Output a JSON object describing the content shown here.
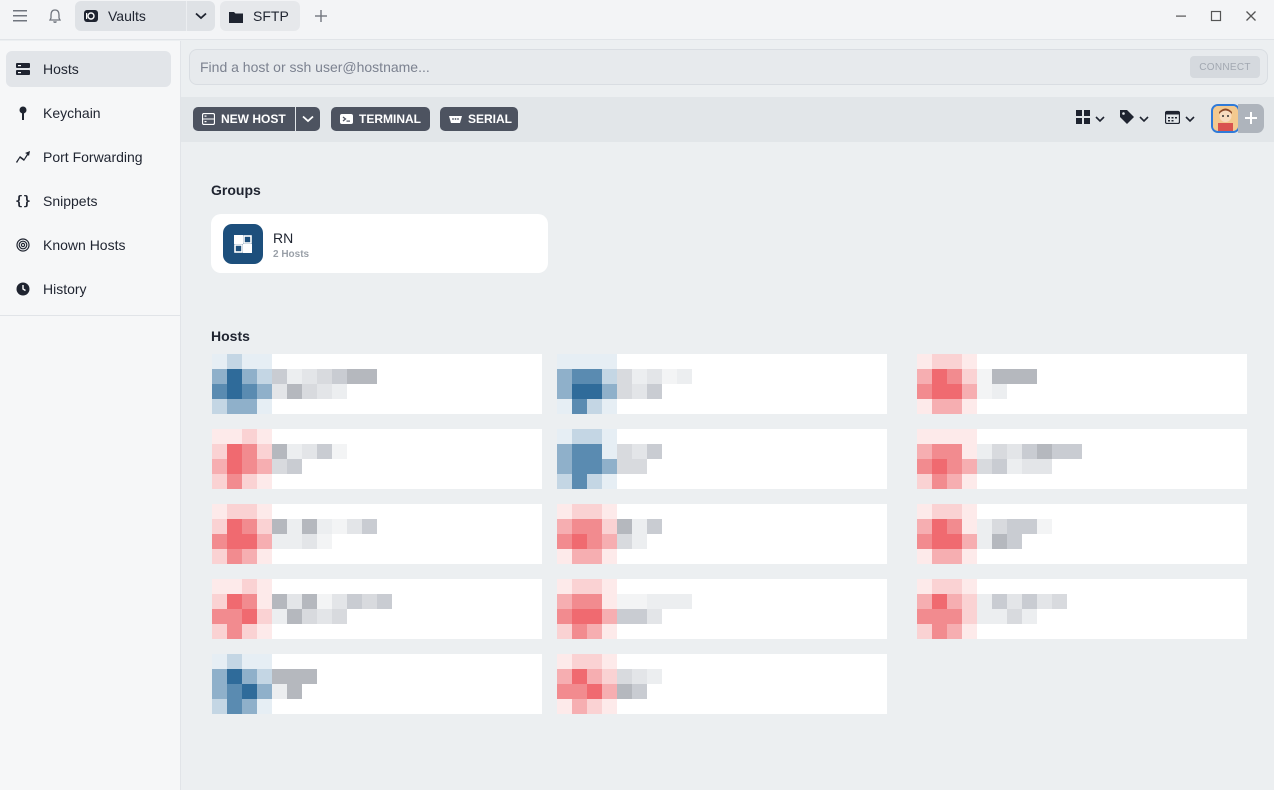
{
  "titlebar": {
    "vaults_label": "Vaults",
    "sftp_label": "SFTP",
    "icons": [
      "menu-icon",
      "bell-icon",
      "vault-icon",
      "chevron-down-icon",
      "folder-icon",
      "plus-icon",
      "minimize-icon",
      "maximize-icon",
      "close-icon"
    ]
  },
  "sidebar": {
    "items": [
      {
        "label": "Hosts",
        "icon": "hosts-icon",
        "active": true
      },
      {
        "label": "Keychain",
        "icon": "key-icon",
        "active": false
      },
      {
        "label": "Port Forwarding",
        "icon": "port-forwarding-icon",
        "active": false
      },
      {
        "label": "Snippets",
        "icon": "snippets-icon",
        "active": false
      },
      {
        "label": "Known Hosts",
        "icon": "fingerprint-icon",
        "active": false
      },
      {
        "label": "History",
        "icon": "history-icon",
        "active": false
      }
    ]
  },
  "search": {
    "placeholder": "Find a host or ssh user@hostname...",
    "value": "",
    "connect_label": "CONNECT"
  },
  "toolbar": {
    "new_host_label": "NEW HOST",
    "terminal_label": "TERMINAL",
    "serial_label": "SERIAL",
    "view_icons": [
      "grid-view-icon",
      "tag-icon",
      "sort-icon"
    ]
  },
  "main": {
    "groups_title": "Groups",
    "groups": [
      {
        "name": "RN",
        "count": "2 Hosts"
      }
    ],
    "hosts_title": "Hosts",
    "hosts_note": "host names pixelated in screenshot",
    "hosts": [
      {
        "color": "blue"
      },
      {
        "color": "blue"
      },
      {
        "color": "red"
      },
      {
        "color": "red"
      },
      {
        "color": "blue"
      },
      {
        "color": "red"
      },
      {
        "color": "red"
      },
      {
        "color": "red"
      },
      {
        "color": "red"
      },
      {
        "color": "red"
      },
      {
        "color": "red"
      },
      {
        "color": "red"
      },
      {
        "color": "blue"
      },
      {
        "color": "red"
      }
    ]
  },
  "colors": {
    "accent_dark": "#4d5360",
    "group_icon": "#1d4f7c",
    "host_blue": "#2f6b9a",
    "host_red": "#f06a70",
    "avatar_border": "#2f7ad8"
  }
}
